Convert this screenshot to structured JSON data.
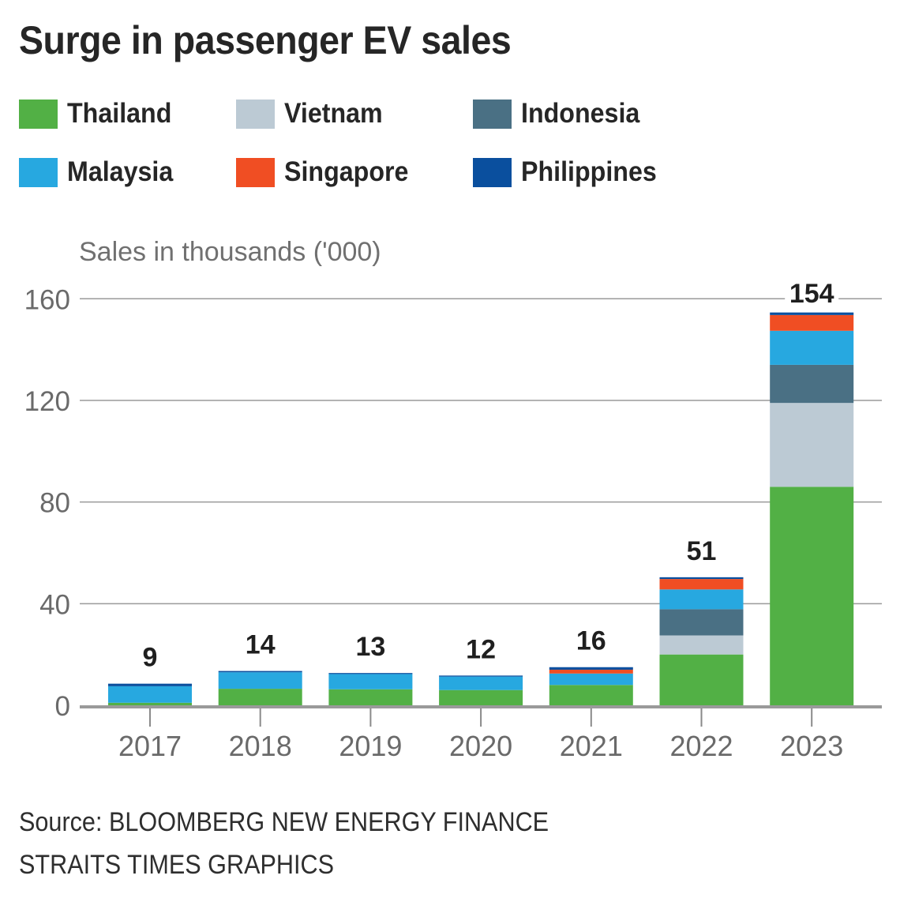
{
  "title": "Surge in passenger EV sales",
  "legend": [
    {
      "name": "Thailand",
      "color": "#52b045"
    },
    {
      "name": "Vietnam",
      "color": "#bccad4"
    },
    {
      "name": "Indonesia",
      "color": "#4a7084"
    },
    {
      "name": "Malaysia",
      "color": "#27a8e0"
    },
    {
      "name": "Singapore",
      "color": "#f04e23"
    },
    {
      "name": "Philippines",
      "color": "#0a4f9e"
    }
  ],
  "source": {
    "line1": "Source: BLOOMBERG NEW ENERGY FINANCE",
    "line2": "STRAITS TIMES GRAPHICS"
  },
  "chart_data": {
    "type": "bar",
    "stacked": true,
    "title": "Surge in passenger EV sales",
    "xlabel": "",
    "ylabel": "Sales in thousands ('000)",
    "ylim": [
      0,
      160
    ],
    "yticks": [
      0,
      40,
      80,
      120,
      160
    ],
    "grid": true,
    "legend_position": "top",
    "categories": [
      "2017",
      "2018",
      "2019",
      "2020",
      "2021",
      "2022",
      "2023"
    ],
    "totals": [
      9,
      14,
      13,
      12,
      16,
      51,
      154
    ],
    "series": [
      {
        "name": "Thailand",
        "color": "#52b045",
        "values": [
          1,
          6.5,
          6.3,
          6,
          8,
          20,
          86
        ]
      },
      {
        "name": "Vietnam",
        "color": "#bccad4",
        "values": [
          0,
          0,
          0,
          0,
          0,
          7.5,
          33
        ]
      },
      {
        "name": "Indonesia",
        "color": "#4a7084",
        "values": [
          0,
          0,
          0,
          0,
          0,
          10.3,
          15
        ]
      },
      {
        "name": "Malaysia",
        "color": "#27a8e0",
        "values": [
          6.5,
          6.5,
          6,
          5.3,
          4.5,
          7.8,
          13.4
        ]
      },
      {
        "name": "Singapore",
        "color": "#f04e23",
        "values": [
          0,
          0,
          0,
          0,
          1.5,
          4.1,
          6.2
        ]
      },
      {
        "name": "Philippines",
        "color": "#0a4f9e",
        "values": [
          1,
          0.5,
          0.4,
          0.4,
          1,
          0.7,
          1
        ]
      }
    ]
  }
}
